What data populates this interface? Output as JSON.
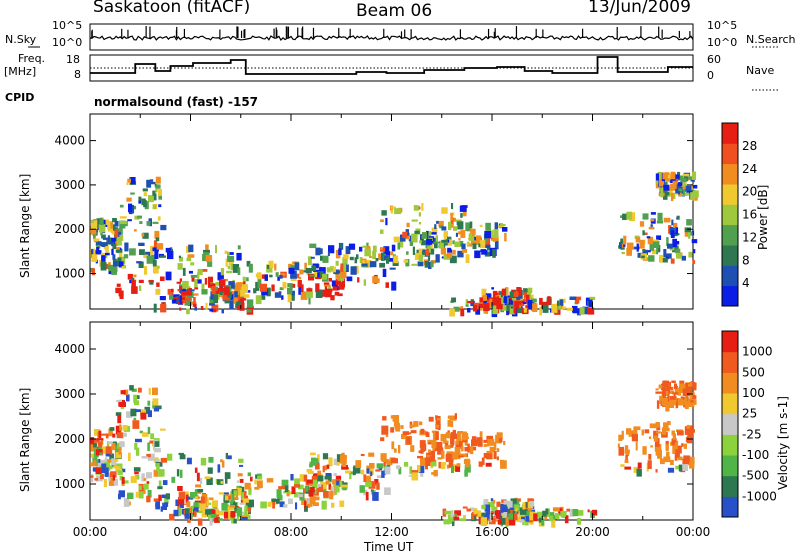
{
  "header": {
    "site": "Saskatoon (fitACF)",
    "beam": "Beam 06",
    "date": "13/Jun/2009"
  },
  "noise_panel": {
    "left_label": "N.Sky",
    "right_label": "N.Search",
    "left_ticks": [
      "10^5",
      "10^0"
    ],
    "right_ticks": [
      "10^5",
      "10^0"
    ]
  },
  "freq_panel": {
    "left_label_1": "Freq.",
    "left_label_2": "[MHz]",
    "left_ticks": [
      "18",
      "8"
    ],
    "right_ticks": [
      "60",
      "0"
    ],
    "right_label": "Nave"
  },
  "cpid": {
    "label": "CPID",
    "text": "normalsound (fast) -157"
  },
  "x_axis": {
    "label": "Time UT",
    "ticks": [
      "00:00",
      "04:00",
      "08:00",
      "12:00",
      "16:00",
      "20:00",
      "00:00"
    ]
  },
  "chart_data": [
    {
      "type": "heatmap",
      "name": "power",
      "ylabel": "Slant Range [km]",
      "yticks": [
        1000,
        2000,
        3000,
        4000
      ],
      "ylim": [
        200,
        4600
      ],
      "xlim": [
        0,
        24
      ],
      "colorbar_label": "Power [dB]",
      "colorbar_ticks": [
        "28",
        "24",
        "20",
        "16",
        "12",
        "8",
        "4"
      ],
      "colors": [
        "#0a1ee6",
        "#1e50b4",
        "#2d7850",
        "#50a050",
        "#a0c83c",
        "#f0c830",
        "#f08c20",
        "#f05020",
        "#e61e14"
      ],
      "colorbar_labels_with_colors": [
        [
          "4",
          "#0a1ee6"
        ],
        [
          "8",
          "#1e50b4"
        ],
        [
          "12",
          "#2d7850"
        ],
        [
          "16",
          "#50a050"
        ],
        [
          "20",
          "#f0c830"
        ],
        [
          "24",
          "#f08c20"
        ],
        [
          "28",
          "#e61e14"
        ]
      ]
    },
    {
      "type": "heatmap",
      "name": "velocity",
      "ylabel": "Slant Range [km]",
      "yticks": [
        1000,
        2000,
        3000,
        4000
      ],
      "ylim": [
        200,
        4600
      ],
      "xlim": [
        0,
        24
      ],
      "colorbar_label": "Velocity [m s-1]",
      "colorbar_ticks": [
        "1000",
        "500",
        "100",
        "25",
        "-25",
        "-100",
        "-500",
        "-1000"
      ],
      "colors": [
        "#2850c8",
        "#2d7850",
        "#50b446",
        "#8cd23c",
        "#c8c8c8",
        "#f0c830",
        "#f08c20",
        "#f05a1e",
        "#e61e14"
      ]
    }
  ]
}
